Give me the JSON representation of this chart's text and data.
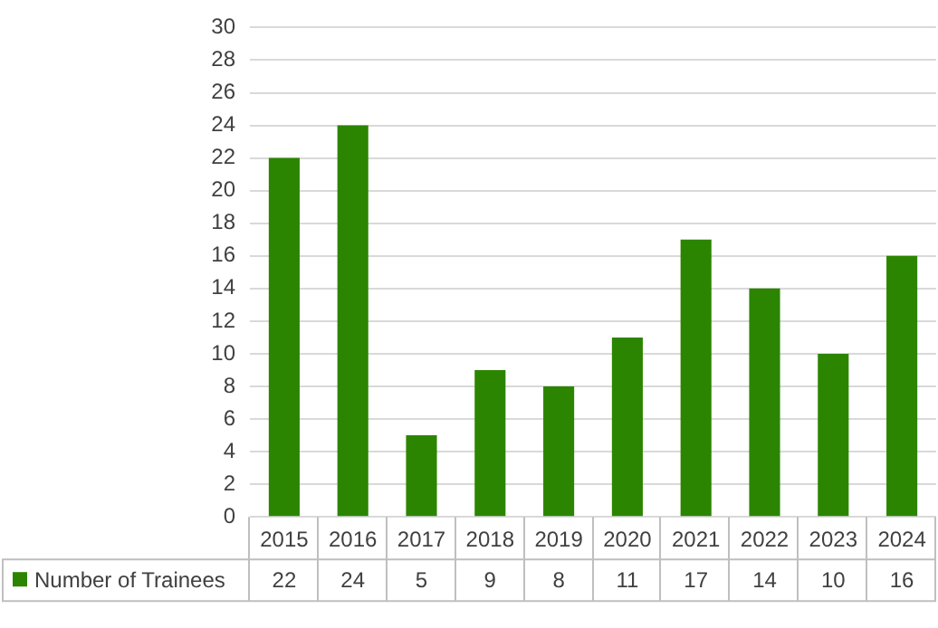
{
  "chart_data": {
    "type": "bar",
    "categories": [
      "2015",
      "2016",
      "2017",
      "2018",
      "2019",
      "2020",
      "2021",
      "2022",
      "2023",
      "2024"
    ],
    "series": [
      {
        "name": "Number of Trainees",
        "color": "#2b8500",
        "values": [
          22,
          24,
          5,
          9,
          8,
          11,
          17,
          14,
          10,
          16
        ]
      }
    ],
    "ylim": [
      0,
      30
    ],
    "yticks": [
      0,
      2,
      4,
      6,
      8,
      10,
      12,
      14,
      16,
      18,
      20,
      22,
      24,
      26,
      28,
      30
    ],
    "grid": "y",
    "legend": "bottom",
    "data_labels": true
  }
}
